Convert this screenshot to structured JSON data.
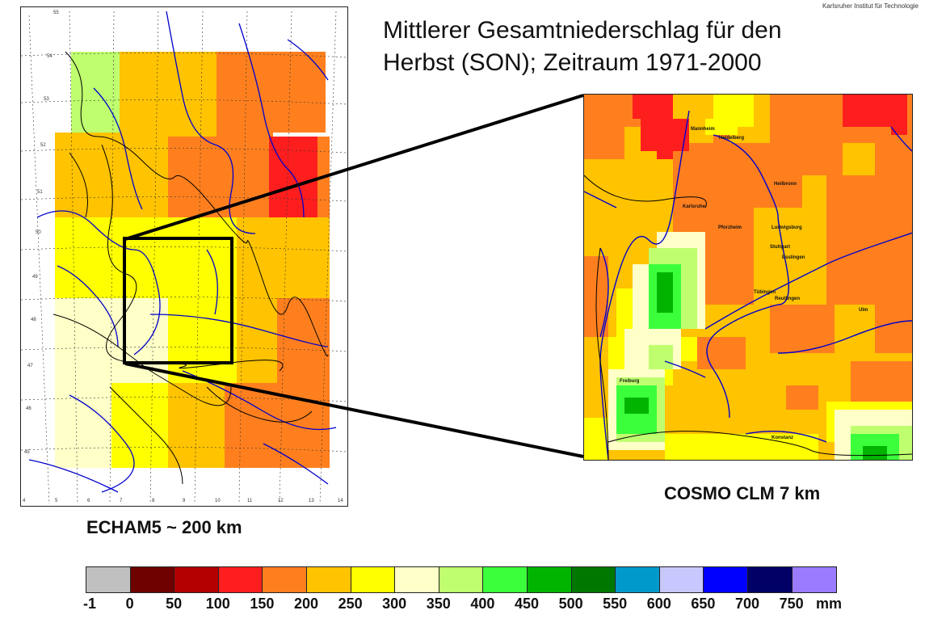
{
  "header": {
    "institution": "Karlsruher Institut für Technologie",
    "title_line1": "Mittlerer Gesamtniederschlag für den",
    "title_line2": "Herbst (SON); Zeitraum 1971-2000"
  },
  "maps": {
    "left_caption": "ECHAM5 ~ 200 km",
    "right_caption": "COSMO CLM 7 km"
  },
  "left_map_ticks": {
    "lat": [
      "55",
      "54",
      "53",
      "52",
      "51",
      "50",
      "49",
      "48",
      "47",
      "46",
      "45"
    ],
    "lon": [
      "4",
      "5",
      "6",
      "7",
      "8",
      "9",
      "10",
      "11",
      "12",
      "13",
      "14"
    ]
  },
  "cities": [
    "Mannheim",
    "Heidelberg",
    "Heilbronn",
    "Karlsruhe",
    "Pforzheim",
    "Ludwigsburg",
    "Stuttgart",
    "Esslingen",
    "Tübingen",
    "Reutlingen",
    "Ulm",
    "Freiburg",
    "Konstanz"
  ],
  "colorbar": {
    "colors": [
      "#c0c0c0",
      "#6e0000",
      "#b40000",
      "#ff1e1e",
      "#ff7f1e",
      "#ffc300",
      "#ffff00",
      "#ffffc8",
      "#bfff6f",
      "#3cff3c",
      "#00b400",
      "#007800",
      "#0099cc",
      "#c8c8ff",
      "#0000ff",
      "#000066",
      "#9b7bff"
    ],
    "labels": [
      "-1",
      "0",
      "50",
      "100",
      "150",
      "200",
      "250",
      "300",
      "350",
      "400",
      "450",
      "500",
      "550",
      "600",
      "650",
      "700",
      "750"
    ],
    "unit": "mm"
  },
  "legend_colors": {
    "grid_lines": "#333333",
    "rivers": "#0000cc",
    "borders": "#000000"
  }
}
